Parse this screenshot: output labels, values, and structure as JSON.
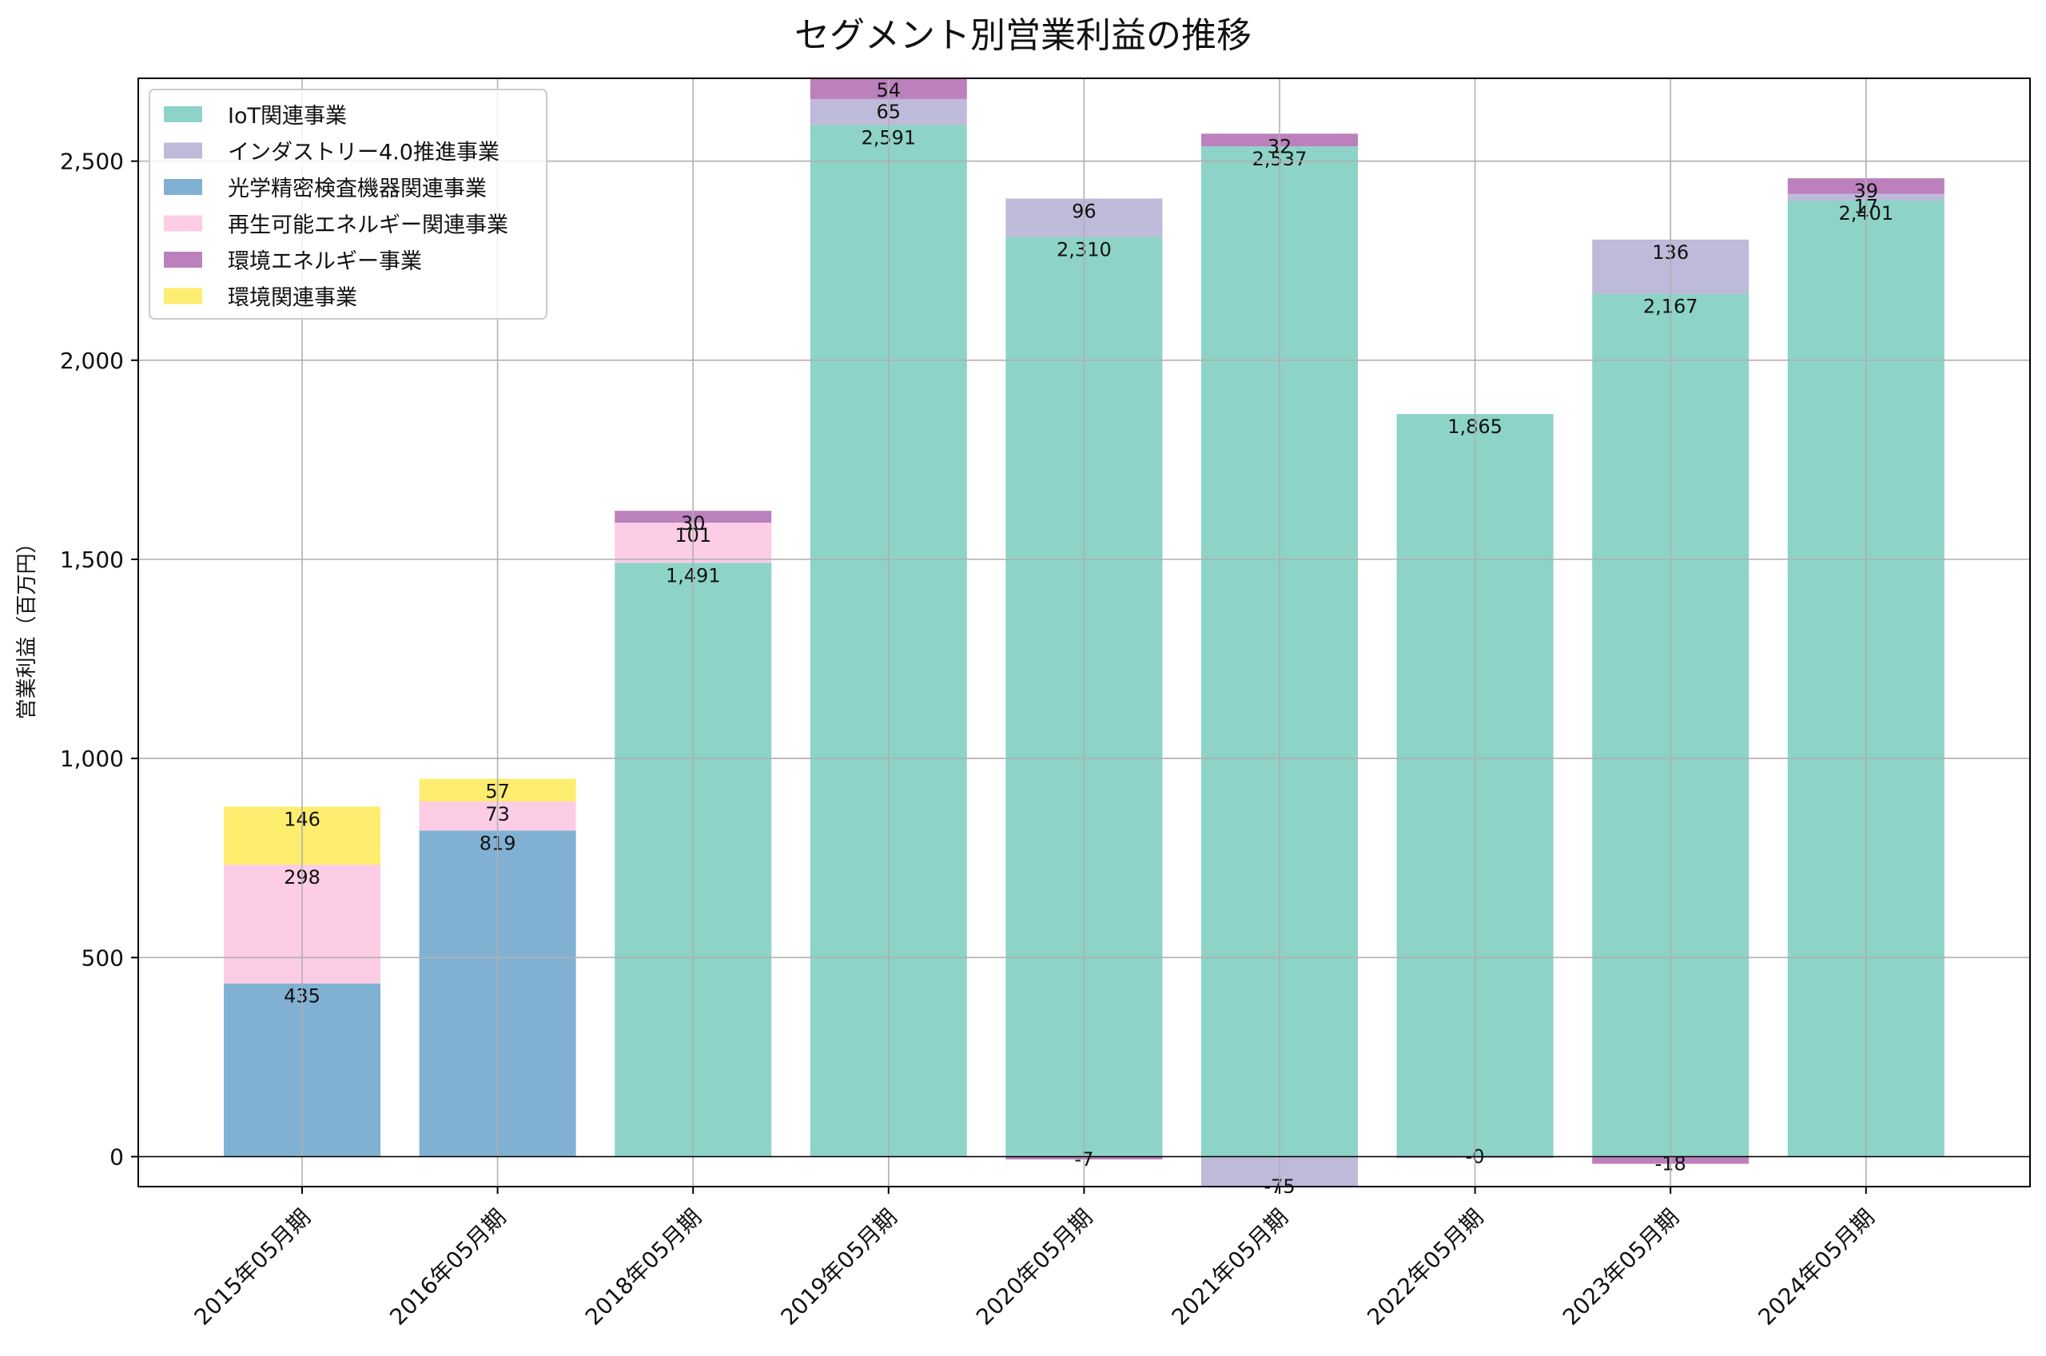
{
  "chart_data": {
    "type": "bar",
    "stacked": true,
    "title": "セグメント別営業利益の推移",
    "xlabel": "",
    "ylabel": "営業利益（百万円）",
    "ylim": [
      -75,
      2705
    ],
    "yticks": [
      0,
      500,
      1000,
      1500,
      2000,
      2500
    ],
    "ytick_labels": [
      "0",
      "500",
      "1,000",
      "1,500",
      "2,000",
      "2,500"
    ],
    "grid": true,
    "legend_position": "top-left",
    "categories": [
      "2015年05月期",
      "2016年05月期",
      "2018年05月期",
      "2019年05月期",
      "2020年05月期",
      "2021年05月期",
      "2022年05月期",
      "2023年05月期",
      "2024年05月期"
    ],
    "series": [
      {
        "name": "IoT関連事業",
        "color": "#8dd3c7",
        "values": [
          null,
          null,
          1491,
          2591,
          2310,
          2537,
          1865,
          2167,
          2401
        ]
      },
      {
        "name": "インダストリー4.0推進事業",
        "color": "#bebada",
        "values": [
          null,
          null,
          null,
          65,
          96,
          -75,
          null,
          136,
          17
        ]
      },
      {
        "name": "光学精密検査機器関連事業",
        "color": "#80b1d3",
        "values": [
          435,
          819,
          null,
          null,
          null,
          null,
          null,
          null,
          null
        ]
      },
      {
        "name": "再生可能エネルギー関連事業",
        "color": "#fccde5",
        "values": [
          298,
          73,
          101,
          null,
          null,
          null,
          null,
          null,
          null
        ]
      },
      {
        "name": "環境エネルギー事業",
        "color": "#bc80bd",
        "values": [
          null,
          null,
          30,
          54,
          -7,
          32,
          -0.4,
          -18,
          39
        ]
      },
      {
        "name": "環境関連事業",
        "color": "#ffed6f",
        "values": [
          146,
          57,
          null,
          null,
          null,
          null,
          null,
          null,
          null
        ]
      }
    ],
    "data_labels": [
      [
        "",
        "",
        "1,491",
        "2,591",
        "2,310",
        "2,537",
        "1,865",
        "2,167",
        "2,401"
      ],
      [
        "",
        "",
        "",
        "65",
        "96",
        "-75",
        "",
        "136",
        "17"
      ],
      [
        "435",
        "819",
        "",
        "",
        "",
        "",
        "",
        "",
        ""
      ],
      [
        "298",
        "73",
        "101",
        "",
        "",
        "",
        "",
        "",
        ""
      ],
      [
        "",
        "",
        "30",
        "54",
        "-7",
        "32",
        "-0",
        "-18",
        "39"
      ],
      [
        "146",
        "57",
        "",
        "",
        "",
        "",
        "",
        "",
        ""
      ]
    ],
    "colors": {
      "grid": "#b0b0b0",
      "axis": "#000000",
      "legend_border": "#cccccc"
    }
  }
}
